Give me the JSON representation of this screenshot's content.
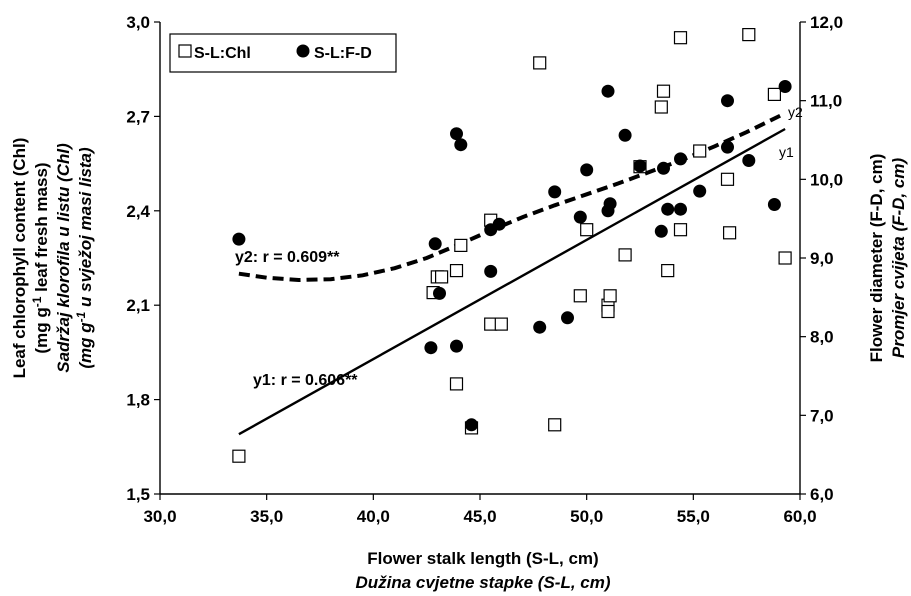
{
  "chart_data": {
    "type": "scatter",
    "x_axis": {
      "label": "Flower stalk length (S-L, cm)",
      "label_local": "Dužina cvjetne stapke (S-L, cm)",
      "range": [
        30,
        60
      ],
      "ticks": [
        "30,0",
        "35,0",
        "40,0",
        "45,0",
        "50,0",
        "55,0",
        "60,0"
      ]
    },
    "y_axis_left": {
      "label_line1": "Leaf chlorophyll content (Chl)",
      "label_line2_pre": "(mg g",
      "label_line2_sup": "-1",
      "label_line2_post": " leaf fresh mass)",
      "label_line3": "Sadržaj klorofila u listu (Chl)",
      "label_line4_pre": "(mg g",
      "label_line4_sup": "-1",
      "label_line4_post": "  u svježoj masi lista)",
      "range": [
        1.5,
        3.0
      ],
      "ticks": [
        "1,5",
        "1,8",
        "2,1",
        "2,4",
        "2,7",
        "3,0"
      ]
    },
    "y_axis_right": {
      "label": "Flower diameter (F-D, cm)",
      "label_local": "Promjer cvijeta (F-D, cm)",
      "range": [
        6.0,
        12.0
      ],
      "ticks": [
        "6,0",
        "7,0",
        "8,0",
        "9,0",
        "10,0",
        "11,0",
        "12,0"
      ]
    },
    "legend": {
      "position": "top-left",
      "items": [
        "S-L:Chl",
        "S-L:F-D"
      ]
    },
    "series": [
      {
        "name": "S-L:Chl",
        "marker": "open-square",
        "axis": "left",
        "points": [
          [
            33.7,
            1.62
          ],
          [
            42.8,
            2.14
          ],
          [
            43.0,
            2.19
          ],
          [
            43.2,
            2.19
          ],
          [
            43.9,
            2.21
          ],
          [
            44.1,
            2.29
          ],
          [
            43.9,
            1.85
          ],
          [
            44.6,
            1.71
          ],
          [
            47.8,
            2.87
          ],
          [
            45.5,
            2.37
          ],
          [
            45.5,
            2.04
          ],
          [
            46.0,
            2.04
          ],
          [
            48.5,
            1.72
          ],
          [
            49.7,
            2.13
          ],
          [
            50.0,
            2.34
          ],
          [
            51.0,
            2.1
          ],
          [
            51.0,
            2.08
          ],
          [
            51.1,
            2.13
          ],
          [
            51.8,
            2.26
          ],
          [
            52.5,
            2.54
          ],
          [
            53.5,
            2.73
          ],
          [
            53.6,
            2.78
          ],
          [
            53.8,
            2.21
          ],
          [
            54.4,
            2.34
          ],
          [
            54.4,
            2.95
          ],
          [
            55.3,
            2.59
          ],
          [
            56.6,
            2.5
          ],
          [
            56.7,
            2.33
          ],
          [
            57.6,
            2.96
          ],
          [
            58.8,
            2.77
          ],
          [
            59.3,
            2.25
          ]
        ]
      },
      {
        "name": "S-L:F-D",
        "marker": "filled-circle",
        "axis": "right",
        "points": [
          [
            33.7,
            9.24
          ],
          [
            42.7,
            7.86
          ],
          [
            42.9,
            9.18
          ],
          [
            43.1,
            8.55
          ],
          [
            43.9,
            10.58
          ],
          [
            43.9,
            7.88
          ],
          [
            44.1,
            10.44
          ],
          [
            44.6,
            6.88
          ],
          [
            45.5,
            9.36
          ],
          [
            45.5,
            8.83
          ],
          [
            45.9,
            9.43
          ],
          [
            47.8,
            8.12
          ],
          [
            48.5,
            9.84
          ],
          [
            49.1,
            8.24
          ],
          [
            49.7,
            9.52
          ],
          [
            50.0,
            10.12
          ],
          [
            51.0,
            11.12
          ],
          [
            51.0,
            9.6
          ],
          [
            51.1,
            9.69
          ],
          [
            51.8,
            10.56
          ],
          [
            52.5,
            10.17
          ],
          [
            53.5,
            9.34
          ],
          [
            53.6,
            10.14
          ],
          [
            53.8,
            9.62
          ],
          [
            54.4,
            10.26
          ],
          [
            54.4,
            9.62
          ],
          [
            55.3,
            9.85
          ],
          [
            56.6,
            10.41
          ],
          [
            56.6,
            11.0
          ],
          [
            57.6,
            10.24
          ],
          [
            58.8,
            9.68
          ],
          [
            59.3,
            11.18
          ]
        ]
      }
    ],
    "fits": [
      {
        "name": "y1",
        "label": "y1",
        "annotation": "y1: r = 0.606**",
        "style": "solid",
        "axis": "left",
        "points": [
          [
            33.7,
            1.69
          ],
          [
            59.3,
            2.66
          ]
        ]
      },
      {
        "name": "y2",
        "label": "y2",
        "annotation": "y2: r = 0.609**",
        "style": "dashed",
        "axis": "right",
        "points": [
          [
            33.7,
            8.8
          ],
          [
            35.0,
            8.75
          ],
          [
            36.5,
            8.72
          ],
          [
            38.0,
            8.73
          ],
          [
            39.5,
            8.78
          ],
          [
            41.0,
            8.87
          ],
          [
            42.5,
            9.0
          ],
          [
            44.0,
            9.17
          ],
          [
            45.5,
            9.35
          ],
          [
            47.0,
            9.52
          ],
          [
            48.5,
            9.67
          ],
          [
            50.0,
            9.81
          ],
          [
            51.5,
            9.95
          ],
          [
            53.0,
            10.1
          ],
          [
            54.5,
            10.25
          ],
          [
            56.0,
            10.42
          ],
          [
            57.5,
            10.6
          ],
          [
            59.3,
            10.84
          ]
        ]
      }
    ]
  }
}
